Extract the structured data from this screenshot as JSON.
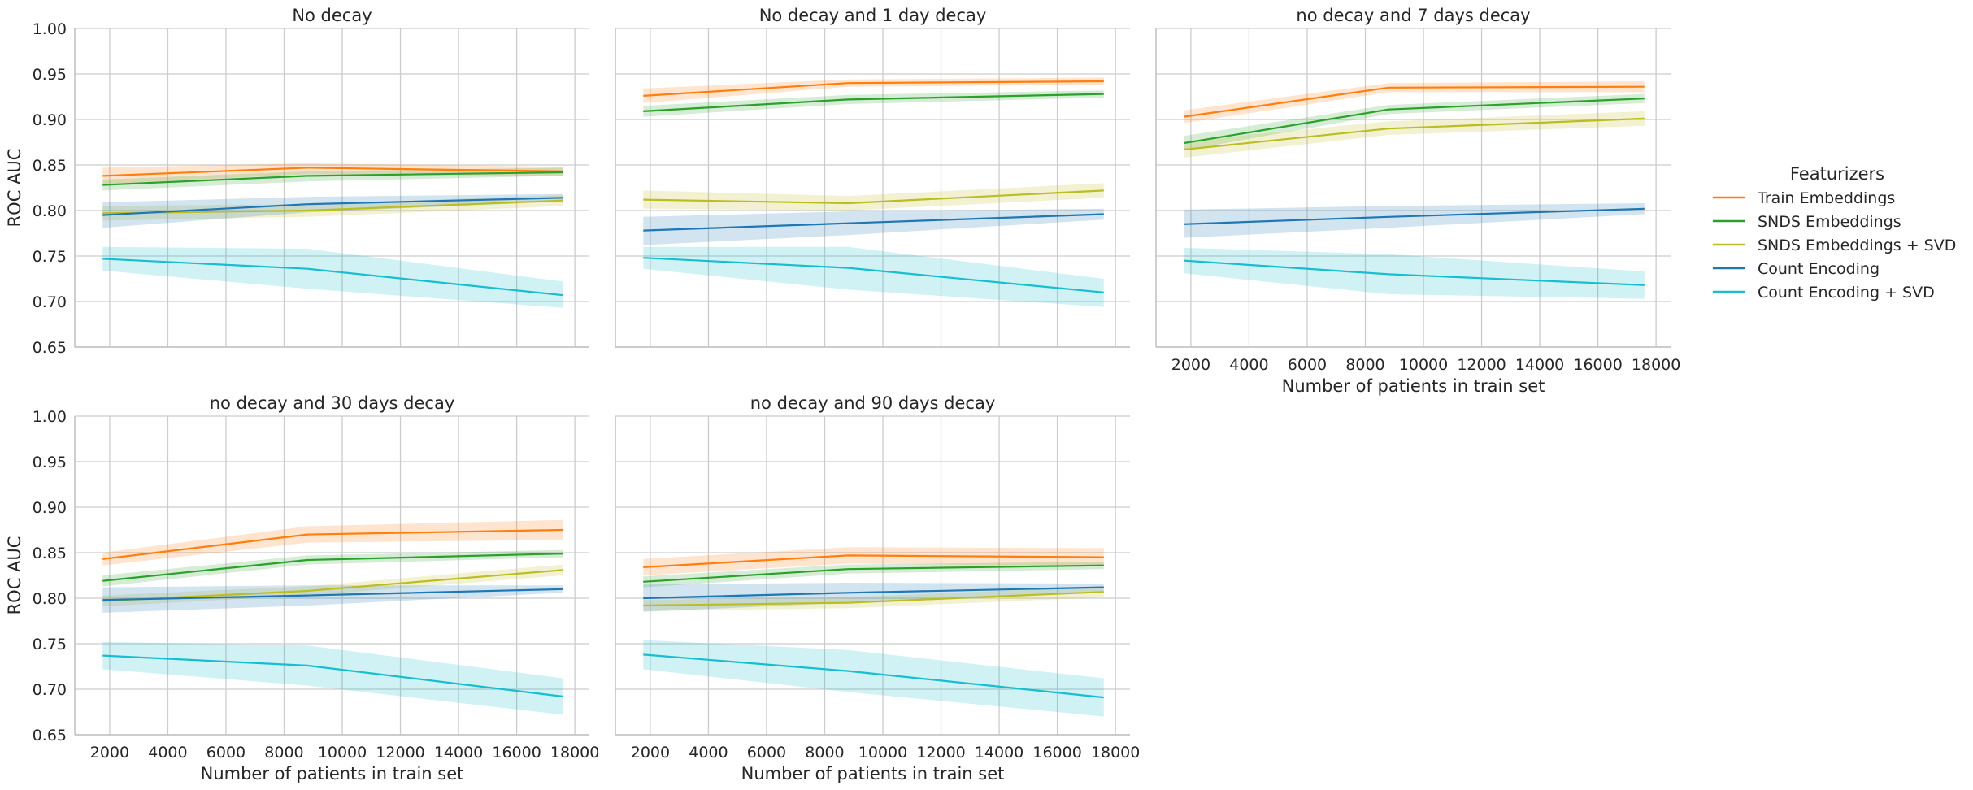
{
  "chart_data": {
    "type": "line",
    "x": [
      1760,
      8800,
      17600
    ],
    "xlabel": "Number of patients in train set",
    "ylabel": "ROC AUC",
    "xlim": [
      800,
      18500
    ],
    "ylim": [
      0.65,
      1.0
    ],
    "xticks": [
      2000,
      4000,
      6000,
      8000,
      10000,
      12000,
      14000,
      16000,
      18000
    ],
    "yticks": [
      "0.65",
      "0.70",
      "0.75",
      "0.80",
      "0.85",
      "0.90",
      "0.95",
      "1.00"
    ],
    "grid": true,
    "legend": {
      "title": "Featurizers",
      "placement": "right",
      "entries": [
        {
          "name": "Train Embeddings",
          "color": "#ff7f0e"
        },
        {
          "name": "SNDS Embeddings",
          "color": "#2ca02c"
        },
        {
          "name": "SNDS Embeddings + SVD",
          "color": "#bcbd22"
        },
        {
          "name": "Count Encoding",
          "color": "#1f77b4"
        },
        {
          "name": "Count Encoding + SVD",
          "color": "#17becf"
        }
      ]
    },
    "panels": [
      {
        "title": "No decay",
        "series": [
          {
            "name": "Train Embeddings",
            "values": [
              0.838,
              0.847,
              0.843
            ],
            "lower": [
              0.829,
              0.84,
              0.838
            ],
            "upper": [
              0.847,
              0.852,
              0.848
            ]
          },
          {
            "name": "SNDS Embeddings",
            "values": [
              0.828,
              0.838,
              0.842
            ],
            "lower": [
              0.822,
              0.832,
              0.838
            ],
            "upper": [
              0.834,
              0.843,
              0.847
            ]
          },
          {
            "name": "SNDS Embeddings + SVD",
            "values": [
              0.797,
              0.8,
              0.811
            ],
            "lower": [
              0.789,
              0.793,
              0.805
            ],
            "upper": [
              0.805,
              0.807,
              0.817
            ]
          },
          {
            "name": "Count Encoding",
            "values": [
              0.795,
              0.807,
              0.814
            ],
            "lower": [
              0.781,
              0.798,
              0.81
            ],
            "upper": [
              0.809,
              0.815,
              0.818
            ]
          },
          {
            "name": "Count Encoding + SVD",
            "values": [
              0.747,
              0.736,
              0.707
            ],
            "lower": [
              0.734,
              0.714,
              0.693
            ],
            "upper": [
              0.76,
              0.758,
              0.722
            ]
          }
        ]
      },
      {
        "title": "No decay and 1 day decay",
        "series": [
          {
            "name": "Train Embeddings",
            "values": [
              0.926,
              0.94,
              0.942
            ],
            "lower": [
              0.918,
              0.936,
              0.938
            ],
            "upper": [
              0.934,
              0.944,
              0.946
            ]
          },
          {
            "name": "SNDS Embeddings",
            "values": [
              0.909,
              0.922,
              0.928
            ],
            "lower": [
              0.903,
              0.917,
              0.924
            ],
            "upper": [
              0.915,
              0.927,
              0.932
            ]
          },
          {
            "name": "SNDS Embeddings + SVD",
            "values": [
              0.812,
              0.808,
              0.822
            ],
            "lower": [
              0.802,
              0.8,
              0.814
            ],
            "upper": [
              0.822,
              0.816,
              0.83
            ]
          },
          {
            "name": "Count Encoding",
            "values": [
              0.778,
              0.786,
              0.796
            ],
            "lower": [
              0.762,
              0.773,
              0.79
            ],
            "upper": [
              0.793,
              0.799,
              0.802
            ]
          },
          {
            "name": "Count Encoding + SVD",
            "values": [
              0.748,
              0.737,
              0.71
            ],
            "lower": [
              0.736,
              0.713,
              0.694
            ],
            "upper": [
              0.76,
              0.76,
              0.725
            ]
          }
        ]
      },
      {
        "title": "no decay and 7 days decay",
        "series": [
          {
            "name": "Train Embeddings",
            "values": [
              0.903,
              0.935,
              0.936
            ],
            "lower": [
              0.896,
              0.93,
              0.93
            ],
            "upper": [
              0.91,
              0.94,
              0.942
            ]
          },
          {
            "name": "SNDS Embeddings",
            "values": [
              0.874,
              0.911,
              0.923
            ],
            "lower": [
              0.866,
              0.906,
              0.918
            ],
            "upper": [
              0.882,
              0.916,
              0.928
            ]
          },
          {
            "name": "SNDS Embeddings + SVD",
            "values": [
              0.867,
              0.89,
              0.901
            ],
            "lower": [
              0.858,
              0.883,
              0.893
            ],
            "upper": [
              0.876,
              0.898,
              0.909
            ]
          },
          {
            "name": "Count Encoding",
            "values": [
              0.785,
              0.793,
              0.802
            ],
            "lower": [
              0.77,
              0.781,
              0.796
            ],
            "upper": [
              0.801,
              0.805,
              0.808
            ]
          },
          {
            "name": "Count Encoding + SVD",
            "values": [
              0.745,
              0.73,
              0.718
            ],
            "lower": [
              0.731,
              0.708,
              0.703
            ],
            "upper": [
              0.759,
              0.752,
              0.733
            ]
          }
        ]
      },
      {
        "title": "no decay and 30 days decay",
        "series": [
          {
            "name": "Train Embeddings",
            "values": [
              0.843,
              0.87,
              0.875
            ],
            "lower": [
              0.836,
              0.861,
              0.864
            ],
            "upper": [
              0.85,
              0.879,
              0.886
            ]
          },
          {
            "name": "SNDS Embeddings",
            "values": [
              0.819,
              0.842,
              0.849
            ],
            "lower": [
              0.813,
              0.837,
              0.845
            ],
            "upper": [
              0.825,
              0.847,
              0.853
            ]
          },
          {
            "name": "SNDS Embeddings + SVD",
            "values": [
              0.797,
              0.808,
              0.831
            ],
            "lower": [
              0.791,
              0.803,
              0.825
            ],
            "upper": [
              0.803,
              0.813,
              0.837
            ]
          },
          {
            "name": "Count Encoding",
            "values": [
              0.798,
              0.803,
              0.81
            ],
            "lower": [
              0.784,
              0.792,
              0.806
            ],
            "upper": [
              0.812,
              0.814,
              0.814
            ]
          },
          {
            "name": "Count Encoding + SVD",
            "values": [
              0.737,
              0.726,
              0.692
            ],
            "lower": [
              0.722,
              0.704,
              0.672
            ],
            "upper": [
              0.752,
              0.748,
              0.712
            ]
          }
        ]
      },
      {
        "title": "no decay and 90 days decay",
        "series": [
          {
            "name": "Train Embeddings",
            "values": [
              0.834,
              0.847,
              0.845
            ],
            "lower": [
              0.825,
              0.838,
              0.835
            ],
            "upper": [
              0.843,
              0.856,
              0.855
            ]
          },
          {
            "name": "SNDS Embeddings",
            "values": [
              0.818,
              0.832,
              0.836
            ],
            "lower": [
              0.812,
              0.827,
              0.832
            ],
            "upper": [
              0.824,
              0.837,
              0.84
            ]
          },
          {
            "name": "SNDS Embeddings + SVD",
            "values": [
              0.792,
              0.795,
              0.807
            ],
            "lower": [
              0.786,
              0.789,
              0.801
            ],
            "upper": [
              0.798,
              0.801,
              0.813
            ]
          },
          {
            "name": "Count Encoding",
            "values": [
              0.8,
              0.806,
              0.812
            ],
            "lower": [
              0.785,
              0.795,
              0.808
            ],
            "upper": [
              0.815,
              0.817,
              0.816
            ]
          },
          {
            "name": "Count Encoding + SVD",
            "values": [
              0.738,
              0.72,
              0.691
            ],
            "lower": [
              0.722,
              0.697,
              0.67
            ],
            "upper": [
              0.754,
              0.743,
              0.712
            ]
          }
        ]
      }
    ]
  }
}
